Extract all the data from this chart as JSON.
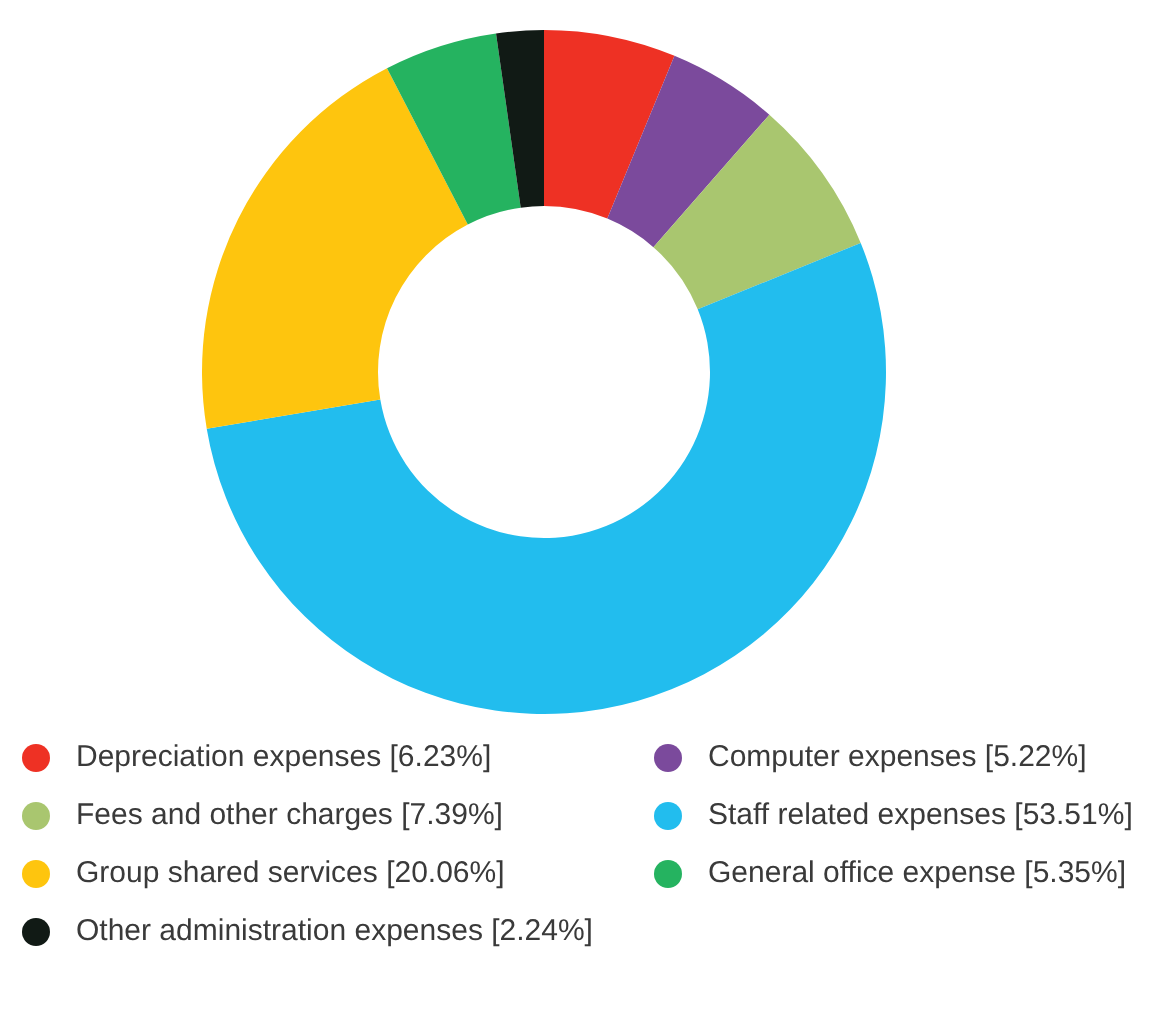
{
  "chart_data": {
    "type": "donut",
    "categories": [
      "Depreciation expenses [6.23%]",
      "Computer expenses [5.22%]",
      "Fees and other charges [7.39%]",
      "Staff related expenses [53.51%]",
      "Group shared services [20.06%]",
      "General office expense [5.35%]",
      "Other administration expenses [2.24%]"
    ],
    "values": [
      6.23,
      5.22,
      7.39,
      53.51,
      20.06,
      5.35,
      2.24
    ],
    "colors": [
      "#ee3124",
      "#7b4a9c",
      "#a9c66f",
      "#22bdee",
      "#fec50e",
      "#25b360",
      "#111a15"
    ],
    "legend": "bottom"
  }
}
